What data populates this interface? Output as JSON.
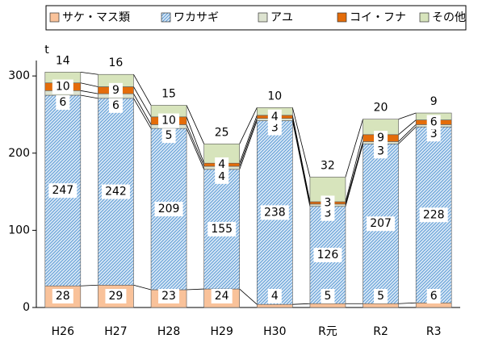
{
  "chart_data": {
    "type": "stacked-bar",
    "y_unit": "t",
    "categories": [
      "H26",
      "H27",
      "H28",
      "H29",
      "H30",
      "R元",
      "R2",
      "R3"
    ],
    "series": [
      {
        "name": "サケ・マス類",
        "color": "#f9c29a",
        "values": [
          28,
          29,
          23,
          24,
          4,
          5,
          5,
          6
        ]
      },
      {
        "name": "ワカサギ",
        "color": "#5b9bd5",
        "hatch": true,
        "values": [
          247,
          242,
          209,
          155,
          238,
          126,
          207,
          228
        ]
      },
      {
        "name": "アユ",
        "color": "#dde3d0",
        "values": [
          6,
          6,
          5,
          4,
          3,
          3,
          3,
          3
        ]
      },
      {
        "name": "コイ・フナ",
        "color": "#e46c0a",
        "values": [
          10,
          9,
          10,
          4,
          4,
          3,
          9,
          6
        ]
      },
      {
        "name": "その他",
        "color": "#d7e4bc",
        "values": [
          14,
          16,
          15,
          25,
          10,
          32,
          20,
          9
        ]
      }
    ],
    "ylim": [
      0,
      320
    ],
    "yticks": [
      0,
      100,
      200,
      300
    ]
  }
}
